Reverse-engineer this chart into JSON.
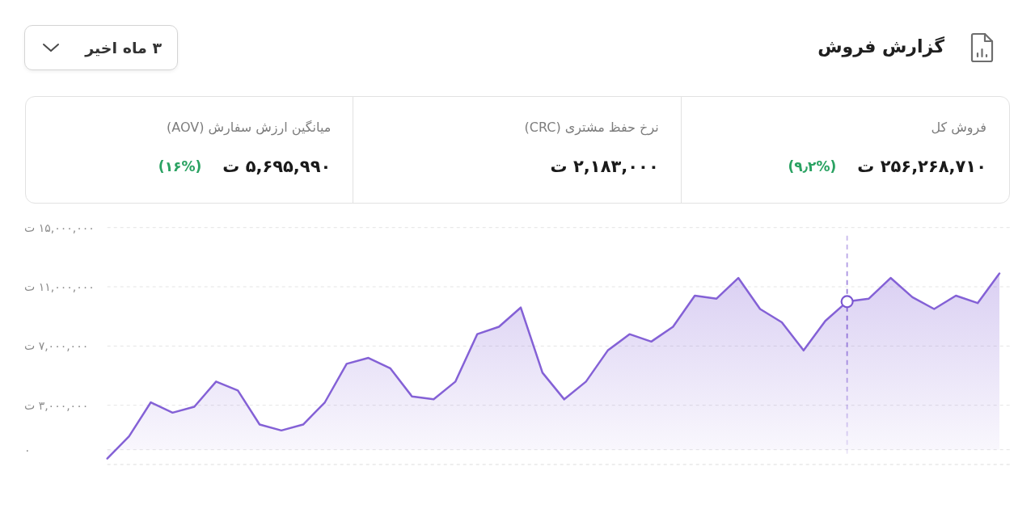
{
  "chart_data": [
    {
      "type": "other",
      "title": "گزارش فروش",
      "annotations": [
        "۳ ماه اخیر",
        "فروش کل",
        "۲۵۶,۲۶۸,۷۱۰ ت",
        "(۹٫۲%)",
        "نرخ حفظ مشتری (CRC)",
        "۲,۱۸۳,۰۰۰ ت",
        "میانگین ارزش سفارش (AOV)",
        "۵,۶۹۵,۹۹۰ ت",
        "(۱۶%)"
      ]
    },
    {
      "type": "area",
      "categories": [
        null,
        null,
        null,
        null,
        null,
        null,
        null,
        null,
        null,
        null,
        null,
        null,
        null,
        null,
        null,
        null,
        null,
        null,
        null,
        null,
        null,
        null,
        null,
        null,
        null,
        null,
        null,
        null,
        null,
        null,
        null,
        null,
        null,
        null,
        null,
        null,
        null,
        null,
        null,
        null,
        null,
        null
      ],
      "series": [
        {
          "color": "#8461d6",
          "values": [
            -600000,
            900000,
            3200000,
            2500000,
            2900000,
            4600000,
            4000000,
            1700000,
            1300000,
            1700000,
            3200000,
            5800000,
            6200000,
            5500000,
            3600000,
            3400000,
            4600000,
            7800000,
            8300000,
            9600000,
            5200000,
            3400000,
            4600000,
            6700000,
            7800000,
            7300000,
            8300000,
            10400000,
            10200000,
            11600000,
            9500000,
            8600000,
            6700000,
            8700000,
            10000000,
            10200000,
            11600000,
            10300000,
            9500000,
            10400000,
            9900000,
            11900000
          ]
        },
        {
          "type": "scatter",
          "marker": "circle",
          "color": "#7b57d1",
          "values": [
            null,
            null,
            null,
            null,
            null,
            null,
            null,
            null,
            null,
            null,
            null,
            null,
            null,
            null,
            null,
            null,
            null,
            null,
            null,
            null,
            null,
            null,
            null,
            null,
            null,
            null,
            null,
            null,
            null,
            null,
            null,
            null,
            null,
            null,
            10000000,
            null,
            null,
            null,
            null,
            null,
            null,
            null
          ]
        }
      ],
      "ylim": [
        -1000000,
        15000000
      ],
      "yticks": [
        {
          "value": 0,
          "label": "۰"
        },
        {
          "value": 3000000,
          "label": "۳,۰۰۰,۰۰۰ ت"
        },
        {
          "value": 7000000,
          "label": "۷,۰۰۰,۰۰۰ ت"
        },
        {
          "value": 11000000,
          "label": "۱۱,۰۰۰,۰۰۰ ت"
        },
        {
          "value": 15000000,
          "label": "۱۵,۰۰۰,۰۰۰ ت"
        }
      ],
      "grid": "y",
      "tick_labels": "y"
    }
  ]
}
